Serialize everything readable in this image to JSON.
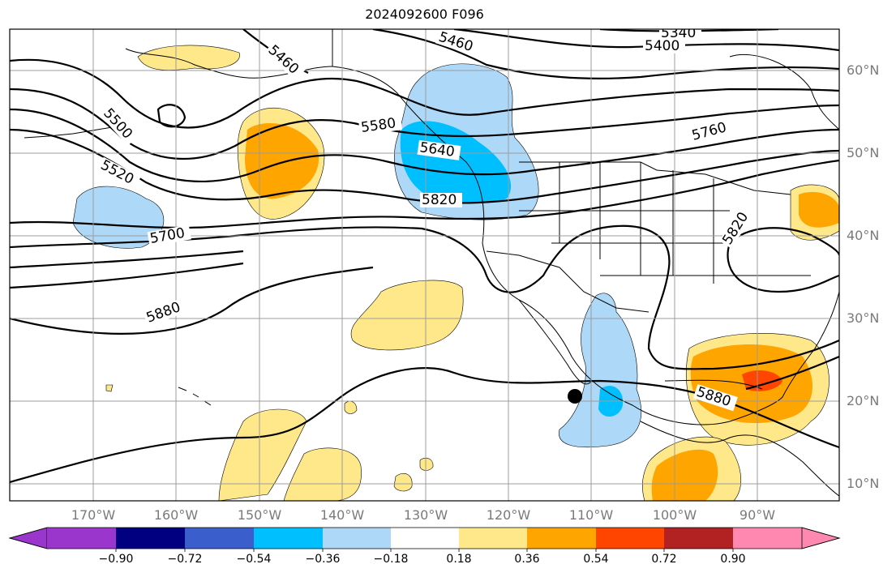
{
  "title": "2024092600 F096",
  "lat_labels": [
    "60°N",
    "50°N",
    "40°N",
    "30°N",
    "20°N",
    "10°N"
  ],
  "lon_labels": [
    "170°W",
    "160°W",
    "150°W",
    "140°W",
    "130°W",
    "120°W",
    "110°W",
    "100°W",
    "90°W"
  ],
  "contour_labels": [
    "5340",
    "5400",
    "5460",
    "5460",
    "5500",
    "5520",
    "5580",
    "5640",
    "5700",
    "5760",
    "5820",
    "5820",
    "5880",
    "5880"
  ],
  "colorbar": {
    "ticks": [
      "−0.90",
      "−0.72",
      "−0.54",
      "−0.36",
      "−0.18",
      "0.18",
      "0.36",
      "0.54",
      "0.72",
      "0.90"
    ],
    "colors": [
      "#9a36cc",
      "#000080",
      "#3a5fcd",
      "#00bfff",
      "#add8f8",
      "#ffffff",
      "#ffe88a",
      "#ffa500",
      "#ff4500",
      "#b22222",
      "#ff88b0"
    ]
  },
  "marker": {
    "lat": 20.5,
    "lon": -112
  }
}
